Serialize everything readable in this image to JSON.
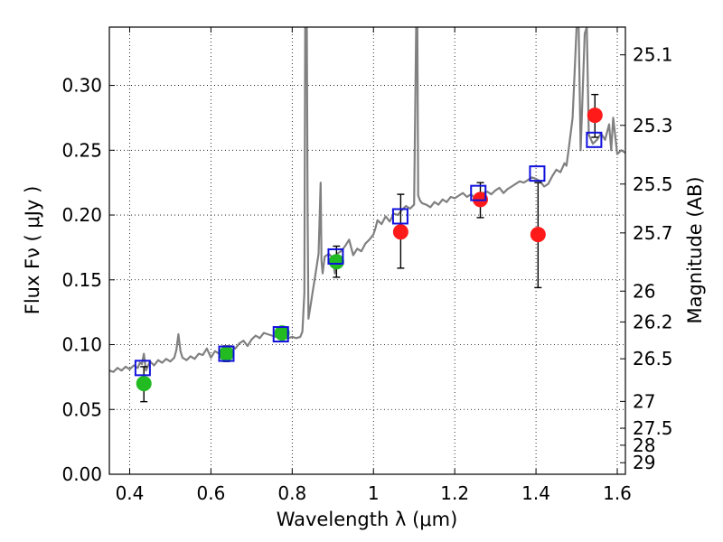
{
  "chart_data": {
    "type": "scatter",
    "xlabel": "Wavelength  λ (μm)",
    "ylabel": "Flux  Fν  ( μJy )",
    "y2label": "Magnitude (AB)",
    "xlim": [
      0.35,
      1.62
    ],
    "ylim": [
      0.0,
      0.345
    ],
    "grid": true,
    "x_ticks": [
      0.4,
      0.6,
      0.8,
      1.0,
      1.2,
      1.4,
      1.6
    ],
    "x_tick_labels": [
      "0.4",
      "0.6",
      "0.8",
      "1",
      "1.2",
      "1.4",
      "1.6"
    ],
    "y_ticks": [
      0.0,
      0.05,
      0.1,
      0.15,
      0.2,
      0.25,
      0.3
    ],
    "y_tick_labels": [
      "0.00",
      "0.05",
      "0.10",
      "0.15",
      "0.20",
      "0.25",
      "0.30"
    ],
    "y2_ticks": [
      {
        "label": "25.1",
        "flux": 0.3236
      },
      {
        "label": "25.3",
        "flux": 0.2692
      },
      {
        "label": "25.5",
        "flux": 0.2239
      },
      {
        "label": "25.7",
        "flux": 0.1862
      },
      {
        "label": "26",
        "flux": 0.1413
      },
      {
        "label": "26.2",
        "flux": 0.1175
      },
      {
        "label": "26.5",
        "flux": 0.0891
      },
      {
        "label": "27",
        "flux": 0.0562
      },
      {
        "label": "27.5",
        "flux": 0.0355
      },
      {
        "label": "28",
        "flux": 0.0224
      },
      {
        "label": "29",
        "flux": 0.0089
      }
    ],
    "series": [
      {
        "kind": "line",
        "color": "#808080",
        "x": [
          0.35,
          0.36,
          0.37,
          0.38,
          0.39,
          0.4,
          0.41,
          0.42,
          0.425,
          0.43,
          0.435,
          0.44,
          0.45,
          0.46,
          0.47,
          0.48,
          0.49,
          0.5,
          0.51,
          0.515,
          0.52,
          0.525,
          0.53,
          0.54,
          0.55,
          0.56,
          0.57,
          0.58,
          0.59,
          0.6,
          0.61,
          0.62,
          0.63,
          0.64,
          0.65,
          0.66,
          0.67,
          0.68,
          0.69,
          0.7,
          0.71,
          0.72,
          0.73,
          0.74,
          0.75,
          0.76,
          0.77,
          0.78,
          0.79,
          0.8,
          0.81,
          0.82,
          0.825,
          0.83,
          0.832,
          0.834,
          0.836,
          0.838,
          0.84,
          0.845,
          0.85,
          0.855,
          0.86,
          0.865,
          0.87,
          0.872,
          0.875,
          0.88,
          0.89,
          0.9,
          0.905,
          0.91,
          0.92,
          0.93,
          0.94,
          0.95,
          0.96,
          0.97,
          0.98,
          0.99,
          1.0,
          1.005,
          1.01,
          1.02,
          1.03,
          1.04,
          1.05,
          1.06,
          1.07,
          1.08,
          1.09,
          1.1,
          1.105,
          1.108,
          1.11,
          1.115,
          1.12,
          1.13,
          1.14,
          1.15,
          1.16,
          1.17,
          1.18,
          1.19,
          1.2,
          1.21,
          1.22,
          1.23,
          1.24,
          1.25,
          1.26,
          1.27,
          1.28,
          1.29,
          1.3,
          1.31,
          1.32,
          1.33,
          1.34,
          1.35,
          1.36,
          1.37,
          1.38,
          1.39,
          1.4,
          1.41,
          1.42,
          1.43,
          1.44,
          1.45,
          1.46,
          1.47,
          1.475,
          1.48,
          1.49,
          1.5,
          1.505,
          1.51,
          1.52,
          1.525,
          1.53,
          1.54,
          1.55,
          1.56,
          1.57,
          1.58,
          1.585,
          1.59,
          1.6,
          1.61,
          1.62
        ],
        "y": [
          0.08,
          0.079,
          0.082,
          0.08,
          0.083,
          0.081,
          0.084,
          0.082,
          0.086,
          0.085,
          0.093,
          0.08,
          0.087,
          0.084,
          0.088,
          0.086,
          0.089,
          0.087,
          0.09,
          0.096,
          0.108,
          0.095,
          0.09,
          0.088,
          0.091,
          0.089,
          0.093,
          0.092,
          0.097,
          0.09,
          0.095,
          0.093,
          0.096,
          0.094,
          0.099,
          0.097,
          0.101,
          0.103,
          0.099,
          0.104,
          0.107,
          0.105,
          0.109,
          0.108,
          0.107,
          0.106,
          0.107,
          0.108,
          0.105,
          0.106,
          0.105,
          0.106,
          0.11,
          0.14,
          0.345,
          0.345,
          0.345,
          0.2,
          0.12,
          0.13,
          0.14,
          0.15,
          0.16,
          0.17,
          0.225,
          0.165,
          0.155,
          0.168,
          0.17,
          0.167,
          0.155,
          0.17,
          0.172,
          0.176,
          0.181,
          0.169,
          0.174,
          0.172,
          0.178,
          0.181,
          0.185,
          0.19,
          0.196,
          0.193,
          0.199,
          0.195,
          0.201,
          0.2,
          0.204,
          0.207,
          0.205,
          0.208,
          0.345,
          0.345,
          0.215,
          0.211,
          0.209,
          0.208,
          0.206,
          0.21,
          0.208,
          0.212,
          0.21,
          0.214,
          0.213,
          0.215,
          0.217,
          0.214,
          0.216,
          0.213,
          0.215,
          0.217,
          0.218,
          0.216,
          0.219,
          0.221,
          0.217,
          0.22,
          0.222,
          0.224,
          0.226,
          0.225,
          0.227,
          0.229,
          0.228,
          0.226,
          0.222,
          0.224,
          0.23,
          0.235,
          0.233,
          0.24,
          0.238,
          0.25,
          0.275,
          0.345,
          0.345,
          0.25,
          0.34,
          0.345,
          0.262,
          0.255,
          0.258,
          0.263,
          0.258,
          0.27,
          0.25,
          0.275,
          0.247,
          0.25,
          0.248
        ]
      },
      {
        "kind": "points",
        "marker": "circle",
        "color": "#22bb22",
        "points": [
          {
            "x": 0.435,
            "y": 0.07,
            "ylo": 0.056,
            "yhi": 0.083
          },
          {
            "x": 0.638,
            "y": 0.093,
            "ylo": 0.087,
            "yhi": 0.099
          },
          {
            "x": 0.775,
            "y": 0.109,
            "ylo": 0.106,
            "yhi": 0.112
          },
          {
            "x": 0.909,
            "y": 0.164,
            "ylo": 0.152,
            "yhi": 0.176
          }
        ]
      },
      {
        "kind": "points",
        "marker": "circle",
        "color": "#ff1a1a",
        "points": [
          {
            "x": 1.067,
            "y": 0.187,
            "ylo": 0.159,
            "yhi": 0.216
          },
          {
            "x": 1.263,
            "y": 0.212,
            "ylo": 0.198,
            "yhi": 0.225
          },
          {
            "x": 1.405,
            "y": 0.185,
            "ylo": 0.144,
            "yhi": 0.225
          },
          {
            "x": 1.545,
            "y": 0.277,
            "ylo": 0.26,
            "yhi": 0.293
          }
        ]
      },
      {
        "kind": "points",
        "marker": "open-square",
        "color": "#1010dd",
        "points": [
          {
            "x": 0.432,
            "y": 0.082
          },
          {
            "x": 0.638,
            "y": 0.093
          },
          {
            "x": 0.772,
            "y": 0.108
          },
          {
            "x": 0.907,
            "y": 0.168
          },
          {
            "x": 1.066,
            "y": 0.199
          },
          {
            "x": 1.258,
            "y": 0.217
          },
          {
            "x": 1.403,
            "y": 0.232
          },
          {
            "x": 1.543,
            "y": 0.258
          }
        ]
      }
    ]
  }
}
